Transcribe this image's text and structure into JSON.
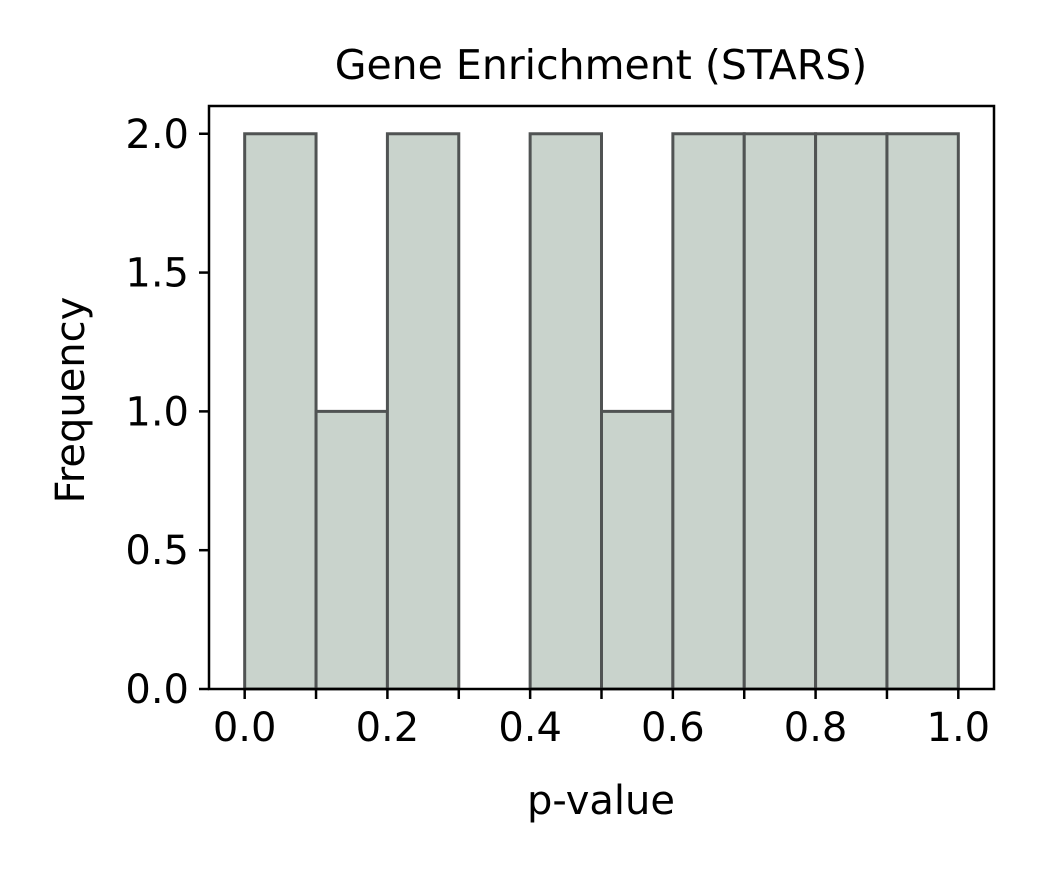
{
  "chart_data": {
    "type": "bar",
    "title": "Gene Enrichment (STARS)",
    "xlabel": "p-value",
    "ylabel": "Frequency",
    "bin_edges": [
      0.0,
      0.1,
      0.2,
      0.3,
      0.4,
      0.5,
      0.6,
      0.7,
      0.8,
      0.9,
      1.0
    ],
    "values": [
      2,
      1,
      2,
      0,
      2,
      1,
      2,
      2,
      2,
      2
    ],
    "xlim": [
      -0.05,
      1.05
    ],
    "ylim": [
      0,
      2.1
    ],
    "xticks": [
      0.0,
      0.2,
      0.4,
      0.6,
      0.8,
      1.0
    ],
    "xtick_labels": [
      "0.0",
      "0.2",
      "0.4",
      "0.6",
      "0.8",
      "1.0"
    ],
    "yticks": [
      0.0,
      0.5,
      1.0,
      1.5,
      2.0
    ],
    "ytick_labels": [
      "0.0",
      "0.5",
      "1.0",
      "1.5",
      "2.0"
    ],
    "bar_color": "#c9d3cc",
    "edge_color": "#505353",
    "grid": false,
    "legend": "none"
  }
}
